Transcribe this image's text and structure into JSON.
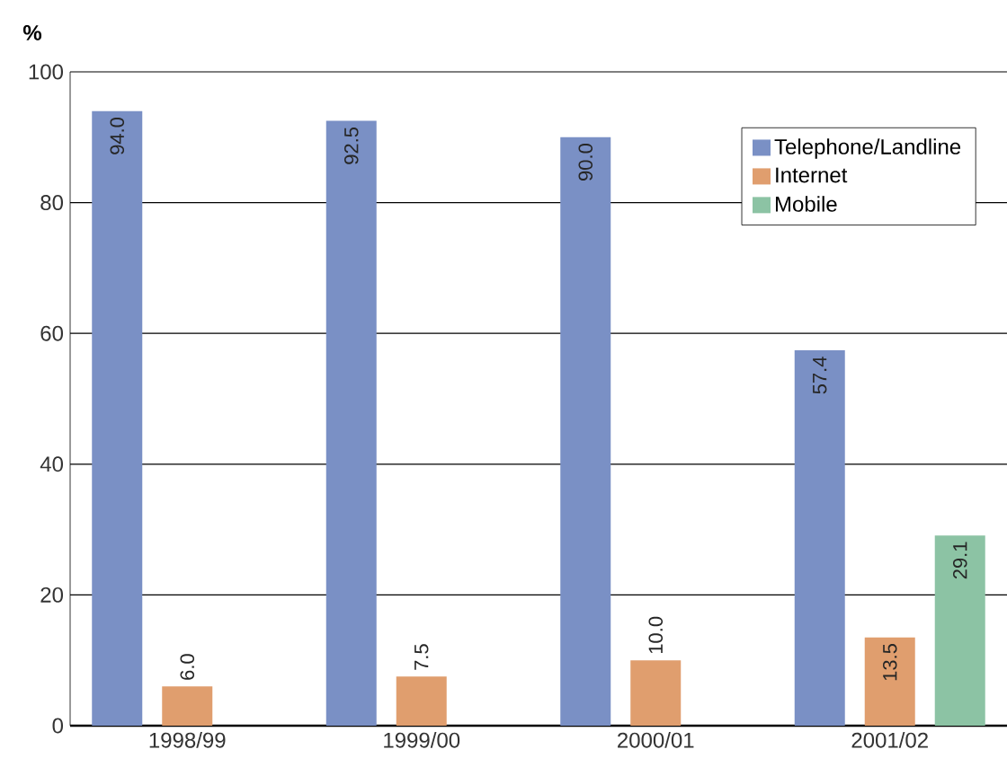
{
  "chart_data": {
    "type": "bar",
    "ylabel": "%",
    "categories": [
      "1998/99",
      "1999/00",
      "2000/01",
      "2001/02"
    ],
    "series": [
      {
        "name": "Telephone/Landline",
        "color": "#7a90c5",
        "values": [
          94.0,
          92.5,
          90.0,
          57.4
        ],
        "value_labels": [
          "94.0",
          "92.5",
          "90.0",
          "57.4"
        ]
      },
      {
        "name": "Internet",
        "color": "#e09e6e",
        "values": [
          6.0,
          7.5,
          10.0,
          13.5
        ],
        "value_labels": [
          "6.0",
          "7.5",
          "10.0",
          "13.5"
        ]
      },
      {
        "name": "Mobile",
        "color": "#8cc3a4",
        "values": [
          null,
          null,
          null,
          29.1
        ],
        "value_labels": [
          null,
          null,
          null,
          "29.1"
        ]
      }
    ],
    "ylim": [
      0,
      100
    ],
    "yticks": [
      0,
      20,
      40,
      60,
      80,
      100
    ],
    "grid": "y",
    "legend": "top right"
  }
}
